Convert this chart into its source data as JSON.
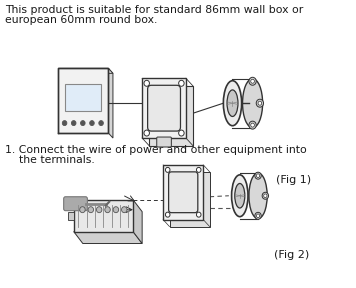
{
  "background_color": "#ffffff",
  "fig_width": 3.56,
  "fig_height": 2.88,
  "dpi": 100,
  "text_block1_line1": "This product is suitable for standard 86mm wall box or",
  "text_block1_line2": "european 60mm round box.",
  "text_block2_line1": "1. Connect the wire of power and other equipment into",
  "text_block2_line2": "    the terminals.",
  "fig1_label": "(Fig 1)",
  "fig2_label": "(Fig 2)",
  "text_color": "#1a1a1a",
  "line_color": "#333333",
  "font_size_text": 7.8,
  "font_size_label": 8.0
}
